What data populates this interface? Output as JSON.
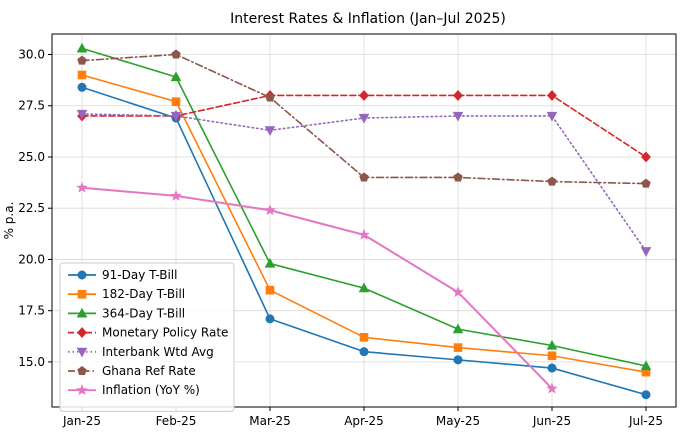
{
  "chart_data": {
    "type": "line",
    "title": "Interest Rates & Inflation (Jan–Jul 2025)",
    "xlabel": "",
    "ylabel": "% p.a.",
    "ylim": [
      12.8,
      31.0
    ],
    "yticks": [
      15.0,
      17.5,
      20.0,
      22.5,
      25.0,
      27.5,
      30.0
    ],
    "ytick_labels": [
      "15.0",
      "17.5",
      "20.0",
      "22.5",
      "25.0",
      "27.5",
      "30.0"
    ],
    "categories": [
      "Jan-25",
      "Feb-25",
      "Mar-25",
      "Apr-25",
      "May-25",
      "Jun-25",
      "Jul-25"
    ],
    "grid": true,
    "legend_position": "lower-left",
    "series": [
      {
        "name": "91-Day T-Bill",
        "color": "#1f77b4",
        "marker": "circle",
        "linestyle": "solid",
        "values": [
          28.4,
          26.9,
          17.1,
          15.5,
          15.1,
          14.7,
          13.4
        ]
      },
      {
        "name": "182-Day T-Bill",
        "color": "#ff7f0e",
        "marker": "square",
        "linestyle": "solid",
        "values": [
          29.0,
          27.7,
          18.5,
          16.2,
          15.7,
          15.3,
          14.5
        ]
      },
      {
        "name": "364-Day T-Bill",
        "color": "#2ca02c",
        "marker": "triangle-up",
        "linestyle": "solid",
        "values": [
          30.3,
          28.9,
          19.8,
          18.6,
          16.6,
          15.8,
          14.8
        ]
      },
      {
        "name": "Monetary Policy Rate",
        "color": "#d62728",
        "marker": "diamond",
        "linestyle": "dashed",
        "values": [
          27.0,
          27.0,
          28.0,
          28.0,
          28.0,
          28.0,
          25.0
        ]
      },
      {
        "name": "Interbank Wtd Avg",
        "color": "#9467bd",
        "marker": "triangle-down",
        "linestyle": "dotted",
        "values": [
          27.1,
          27.0,
          26.3,
          26.9,
          27.0,
          27.0,
          20.4
        ]
      },
      {
        "name": "Ghana Ref Rate",
        "color": "#8c564b",
        "marker": "pentagon",
        "linestyle": "dashdot",
        "values": [
          29.7,
          30.0,
          27.9,
          24.0,
          24.0,
          23.8,
          23.7
        ]
      },
      {
        "name": "Inflation (YoY %)",
        "color": "#e377c2",
        "marker": "star",
        "linestyle": "solid",
        "values": [
          23.5,
          23.1,
          22.4,
          21.2,
          18.4,
          13.7,
          null
        ]
      }
    ]
  }
}
